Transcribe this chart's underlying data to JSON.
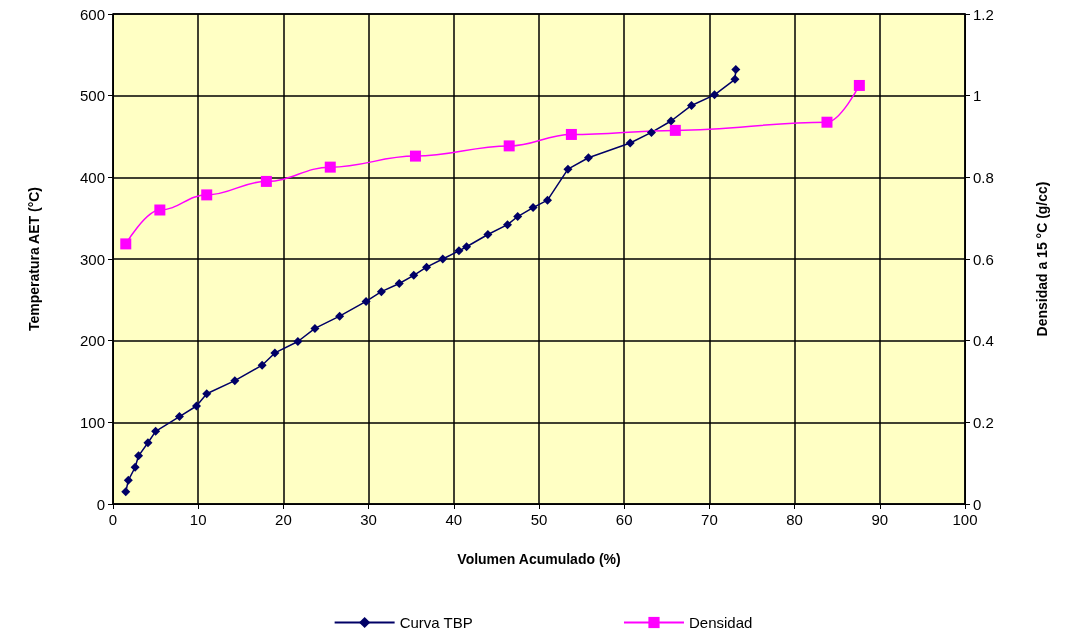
{
  "chart_data": {
    "type": "line",
    "xlabel": "Volumen Acumulado (%)",
    "ylabel": "Temperatura AET (°C)",
    "y2label": "Densidad a 15 °C (g/cc)",
    "xlim": [
      0,
      100
    ],
    "xticks": [
      0,
      10,
      20,
      30,
      40,
      50,
      60,
      70,
      80,
      90,
      100
    ],
    "ylim": [
      0,
      600
    ],
    "yticks": [
      0,
      100,
      200,
      300,
      400,
      500,
      600
    ],
    "y2lim": [
      0,
      1.2
    ],
    "y2ticks": [
      0,
      0.2,
      0.4,
      0.6,
      0.8,
      1,
      1.2
    ],
    "grid": true,
    "legend": "bottom",
    "line_style": "solid",
    "series": [
      {
        "name": "Curva TBP",
        "color": "#000066",
        "marker": "diamond",
        "x": [
          1.5,
          1.8,
          2.6,
          3,
          4.1,
          5,
          7.8,
          9.8,
          11,
          14.3,
          17.5,
          19,
          21.7,
          23.7,
          26.6,
          29.7,
          31.5,
          33.6,
          35.3,
          36.8,
          38.7,
          40.6,
          41.5,
          44,
          46.3,
          47.5,
          49.3,
          51,
          53.4,
          55.8,
          60.7,
          63.2,
          65.5,
          67.9,
          70.6,
          73,
          73.1
        ],
        "values": [
          15,
          29,
          45,
          59,
          75,
          89,
          107,
          120,
          135,
          151,
          170,
          185,
          199,
          215,
          230,
          248,
          260,
          270,
          280,
          290,
          300,
          310,
          315,
          330,
          342,
          352,
          363,
          372,
          410,
          424,
          442,
          455,
          469,
          488,
          501,
          520,
          532
        ]
      },
      {
        "name": "Densidad",
        "color": "#ff00ff",
        "marker": "square",
        "axis": "y2",
        "x": [
          1.5,
          5.5,
          11,
          18,
          25.5,
          35.5,
          46.5,
          53.8,
          66,
          83.8,
          87.6
        ],
        "values": [
          0.637,
          0.72,
          0.757,
          0.79,
          0.825,
          0.852,
          0.877,
          0.905,
          0.915,
          0.935,
          1.025
        ]
      }
    ]
  }
}
